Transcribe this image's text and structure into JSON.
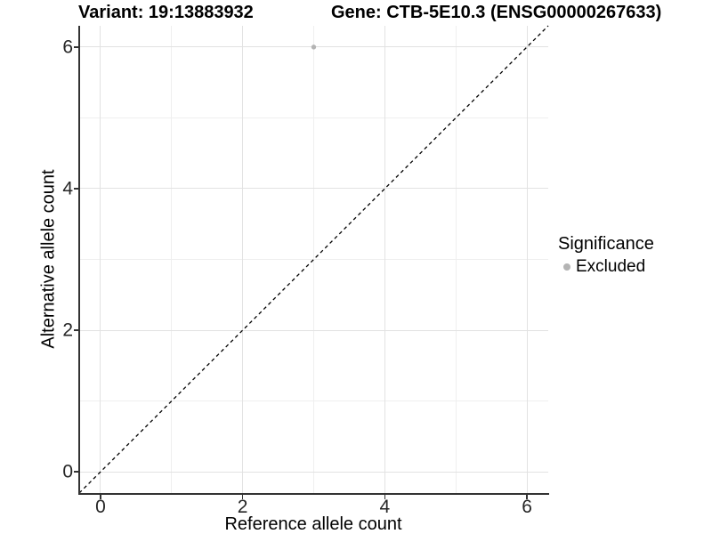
{
  "header": {
    "variant_title": "Variant: 19:13883932",
    "gene_title": "Gene: CTB-5E10.3 (ENSG00000267633)"
  },
  "chart_data": {
    "type": "scatter",
    "xlabel": "Reference allele count",
    "ylabel": "Alternative allele count",
    "xlim": [
      -0.3,
      6.3
    ],
    "ylim": [
      -0.3,
      6.3
    ],
    "xticks": [
      0,
      2,
      4,
      6
    ],
    "yticks": [
      0,
      2,
      4,
      6
    ],
    "xtick_labels": [
      "0",
      "2",
      "4",
      "6"
    ],
    "ytick_labels": [
      "0",
      "2",
      "4",
      "6"
    ],
    "minor_xticks": [
      1,
      3,
      5
    ],
    "minor_yticks": [
      1,
      3,
      5
    ],
    "grid": "major and minor, light grey on white",
    "series": [
      {
        "name": "Excluded",
        "marker": "circle",
        "color": "#b4b4b4",
        "points": [
          {
            "x": 3,
            "y": 6
          }
        ]
      }
    ],
    "reference_line": {
      "kind": "identity",
      "equation": "y = x",
      "style": "dashed",
      "color": "#000000"
    },
    "legend": {
      "title": "Significance",
      "position": "right",
      "entries": [
        {
          "label": "Excluded",
          "color": "#b4b4b4"
        }
      ]
    },
    "colors": {
      "background": "#ffffff",
      "grid_major": "#e2e2e2",
      "grid_minor": "#efefef",
      "axis_line": "#333333",
      "point": "#b4b4b4"
    }
  }
}
